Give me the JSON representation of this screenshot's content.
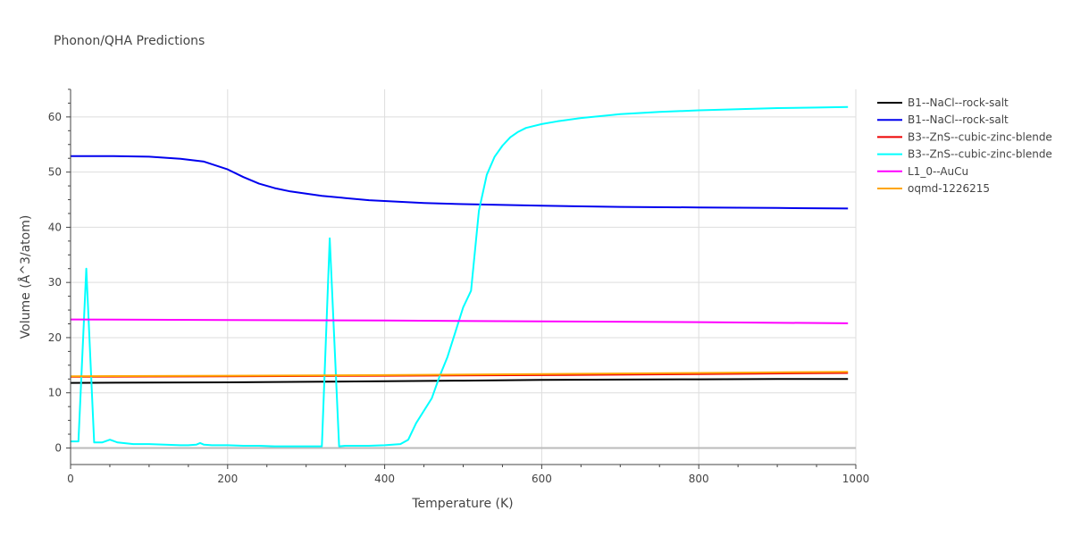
{
  "chart_data": {
    "type": "line",
    "title": "Phonon/QHA Predictions",
    "xlabel": "Temperature (K)",
    "ylabel": "Volume (Å^3/atom)",
    "xlim": [
      0,
      1000
    ],
    "ylim": [
      -3,
      65
    ],
    "xticks": [
      0,
      200,
      400,
      600,
      800,
      1000
    ],
    "yticks": [
      0,
      10,
      20,
      30,
      40,
      50,
      60
    ],
    "grid": true,
    "legend_position": "right",
    "series": [
      {
        "name": "B1--NaCl--rock-salt",
        "color": "#000000",
        "x": [
          0,
          100,
          200,
          300,
          400,
          500,
          600,
          700,
          800,
          900,
          990
        ],
        "y": [
          11.8,
          11.85,
          11.9,
          12.0,
          12.1,
          12.2,
          12.35,
          12.4,
          12.45,
          12.5,
          12.5
        ]
      },
      {
        "name": "B1--NaCl--rock-salt",
        "color": "#0000ee",
        "x": [
          0,
          50,
          100,
          140,
          170,
          200,
          220,
          240,
          260,
          280,
          300,
          320,
          350,
          380,
          450,
          500,
          600,
          700,
          800,
          900,
          990
        ],
        "y": [
          52.9,
          52.9,
          52.8,
          52.4,
          51.9,
          50.5,
          49.1,
          47.9,
          47.1,
          46.5,
          46.1,
          45.7,
          45.3,
          44.9,
          44.4,
          44.2,
          43.9,
          43.7,
          43.6,
          43.5,
          43.4
        ]
      },
      {
        "name": "B3--ZnS--cubic-zinc-blende",
        "color": "#ee0000",
        "x": [
          0,
          200,
          400,
          600,
          800,
          990
        ],
        "y": [
          12.9,
          13.0,
          13.1,
          13.2,
          13.4,
          13.6
        ]
      },
      {
        "name": "B3--ZnS--cubic-zinc-blende",
        "color": "#00ffff",
        "x": [
          0,
          10,
          20,
          30,
          40,
          50,
          60,
          80,
          100,
          120,
          140,
          150,
          160,
          165,
          170,
          180,
          200,
          220,
          240,
          260,
          280,
          300,
          320,
          330,
          342,
          350,
          380,
          400,
          420,
          430,
          440,
          460,
          470,
          480,
          490,
          500,
          510,
          520,
          530,
          540,
          550,
          560,
          570,
          580,
          600,
          620,
          650,
          700,
          750,
          800,
          850,
          900,
          950,
          990
        ],
        "y": [
          1.2,
          1.2,
          32.5,
          1.0,
          1.0,
          1.5,
          1.0,
          0.7,
          0.7,
          0.6,
          0.5,
          0.5,
          0.6,
          0.9,
          0.6,
          0.5,
          0.5,
          0.4,
          0.4,
          0.3,
          0.3,
          0.3,
          0.3,
          38.0,
          0.3,
          0.4,
          0.4,
          0.5,
          0.7,
          1.5,
          4.5,
          9.0,
          13.0,
          16.5,
          21.0,
          25.5,
          28.5,
          43.0,
          49.5,
          52.8,
          54.8,
          56.3,
          57.3,
          58.0,
          58.7,
          59.2,
          59.8,
          60.5,
          60.9,
          61.2,
          61.4,
          61.6,
          61.7,
          61.8
        ]
      },
      {
        "name": "L1_0--AuCu",
        "color": "#ff00ff",
        "x": [
          0,
          200,
          400,
          600,
          800,
          990
        ],
        "y": [
          23.3,
          23.2,
          23.1,
          22.95,
          22.8,
          22.6
        ]
      },
      {
        "name": "oqmd-1226215",
        "color": "#ffa500",
        "x": [
          0,
          200,
          400,
          600,
          800,
          990
        ],
        "y": [
          13.0,
          13.1,
          13.2,
          13.4,
          13.6,
          13.8
        ]
      }
    ]
  }
}
